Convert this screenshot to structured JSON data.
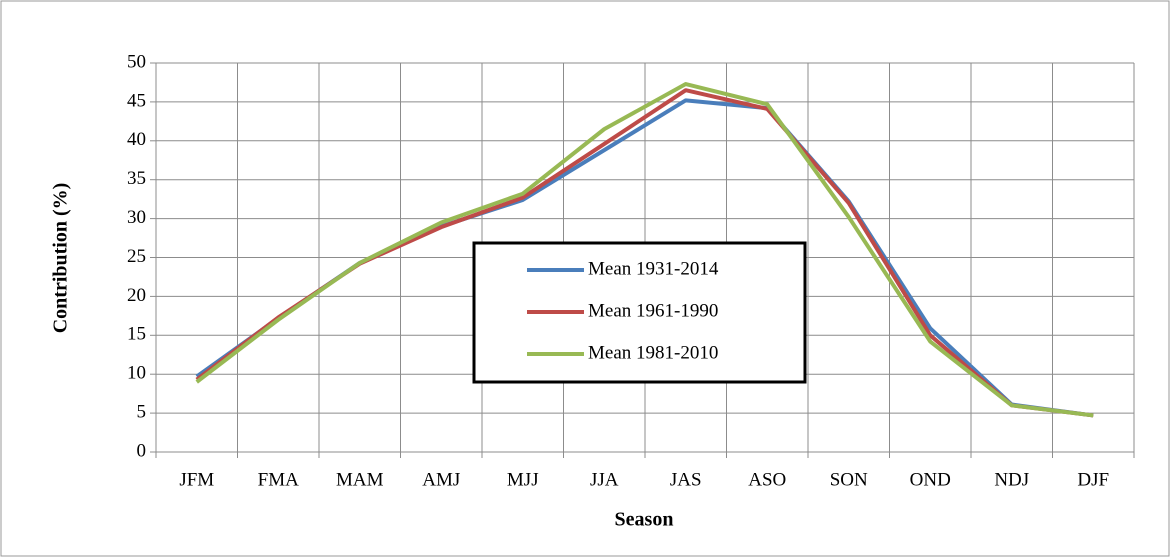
{
  "chart_data": {
    "type": "line",
    "x_label": "Season",
    "y_label": "Contribution (%)",
    "categories": [
      "JFM",
      "FMA",
      "MAM",
      "AMJ",
      "MJJ",
      "JJA",
      "JAS",
      "ASO",
      "SON",
      "OND",
      "NDJ",
      "DJF"
    ],
    "series": [
      {
        "name": "Mean 1931-2014",
        "color": "#4a7ebb",
        "values": [
          9.7,
          17.2,
          24.3,
          29.0,
          32.4,
          38.8,
          45.2,
          44.2,
          32.2,
          15.9,
          6.1,
          4.7
        ]
      },
      {
        "name": "Mean 1961-1990",
        "color": "#be4b48",
        "values": [
          9.3,
          17.3,
          24.2,
          28.9,
          32.7,
          39.6,
          46.5,
          44.1,
          32.0,
          15.0,
          6.0,
          4.7
        ]
      },
      {
        "name": "Mean 1981-2010",
        "color": "#98b954",
        "values": [
          9.0,
          17.0,
          24.3,
          29.5,
          33.2,
          41.5,
          47.3,
          44.7,
          30.2,
          14.2,
          6.0,
          4.7
        ]
      }
    ],
    "ylim": [
      0,
      50
    ],
    "yticks": [
      0,
      5,
      10,
      15,
      20,
      25,
      30,
      35,
      40,
      45,
      50
    ],
    "grid": true,
    "legend": "center"
  }
}
